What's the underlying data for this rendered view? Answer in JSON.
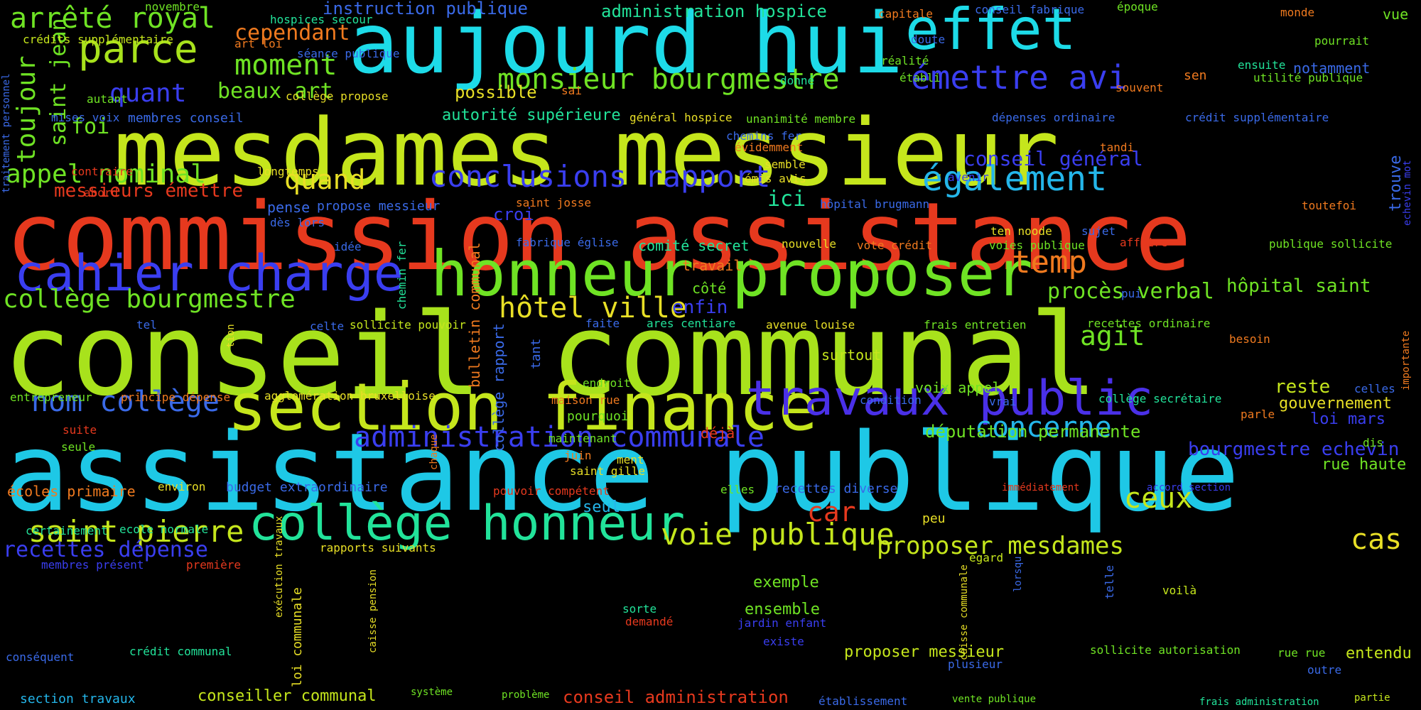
{
  "palette": {
    "background": "#000000",
    "lime": "#c5e61c",
    "green": "#6fe324",
    "cyan": "#1ddbe8",
    "sky": "#24b6ea",
    "red": "#e6391e",
    "blue": "#3a3ef0",
    "orange": "#f07a1f",
    "spring": "#22e39a",
    "yellow": "#e8df26"
  },
  "words": [
    "mesdames messieur",
    "commission assistance",
    "conseil communal",
    "assistance publique",
    "aujourd hui",
    "honneur proposer",
    "section finance",
    "cahier charge",
    "travaux public",
    "collège honneur",
    "effet",
    "parce",
    "arrêté royal",
    "moment",
    "monsieur bourgmestre",
    "émettre avi",
    "conclusions rapport",
    "également",
    "administration communale",
    "saint pierre",
    "voie publique",
    "hôtel ville",
    "collège bourgmestre",
    "appel nominal",
    "temp",
    "nom collège",
    "concerne",
    "quand",
    "toujour",
    "beaux art",
    "cependant",
    "quant",
    "recettes dépense",
    "proposer mesdames",
    "ceux",
    "cas",
    "car",
    "agit",
    "procès verbal",
    "conseil général",
    "députation permanente",
    "bourgmestre echevin",
    "saint jean",
    "instruction publique",
    "administration hospice",
    "messieurs émettre",
    "foi",
    "hôpital saint",
    "possible",
    "conseil administration",
    "conseiller communal",
    "proposer messieur",
    "autorité supérieure",
    "enfin",
    "ici",
    "croi",
    "reste",
    "gouvernement",
    "loi mars",
    "rue haute",
    "seul",
    "ensemble",
    "exemple",
    "entendu",
    "section travaux",
    "écoles primaire",
    "voix appel",
    "surtout",
    "travail",
    "côté",
    "déjà",
    "comité secret",
    "budget extraordinaire",
    "recettes diverse",
    "bulletin communal",
    "collège rapport",
    "loi communale",
    "notamment",
    "vue",
    "trouve",
    "crédits supplémentaire",
    "hospices secour",
    "novembre",
    "capitale",
    "conseil fabrique",
    "époque",
    "monde",
    "pourrait",
    "doute",
    "séance publique",
    "art loi",
    "réalité",
    "établi",
    "collège propose",
    "sai",
    "donné",
    "général hospice",
    "unanimité membre",
    "dépenses ordinaire",
    "crédit supplémentaire",
    "utilité publique",
    "ensuite",
    "sen",
    "souvent",
    "mises voix",
    "membres conseil",
    "autant",
    "traitement personnel",
    "chemins fer",
    "évidemment",
    "semble",
    "émis avis",
    "tandi",
    "avenir",
    "contraire",
    "longtemps",
    "abord",
    "echevin mot",
    "toutefoi",
    "saint josse",
    "hôpital brugmann",
    "pense",
    "propose messieur",
    "dès lors",
    "idée",
    "fabrique église",
    "nouvelle",
    "vote crédit",
    "voies publique",
    "ten noode",
    "sujet",
    "affaire",
    "publique sollicite",
    "chemin fer",
    "pui",
    "tel",
    "celte",
    "sollicite pouvoir",
    "tion",
    "faite",
    "ares centiare",
    "avenue louise",
    "frais entretien",
    "recettes ordinaire",
    "besoin",
    "importante",
    "tant",
    "celles",
    "entrepreneur",
    "principe dépense",
    "agglomération bruxelloise",
    "maison rue",
    "endroit",
    "condition",
    "vrai",
    "collège secrétaire",
    "parle",
    "suite",
    "pourquoi",
    "maintenant",
    "dis",
    "chaque",
    "seule",
    "juin",
    "ment",
    "saint gille",
    "environ",
    "elles",
    "immédiatement",
    "accord section",
    "pouvoir compétent",
    "certainement",
    "ecole normale",
    "exécution travaux",
    "peu",
    "rapports suivants",
    "membres présent",
    "première",
    "caisse pension",
    "égard",
    "lorsqu",
    "telle",
    "voilà",
    "caisse communale",
    "sorte",
    "demandé",
    "jardin enfant",
    "existe",
    "conséquent",
    "crédit communal",
    "sollicite autorisation",
    "rue rue",
    "plusieur",
    "outre",
    "système",
    "problème",
    "établissement",
    "vente publique",
    "frais administration",
    "partie"
  ]
}
